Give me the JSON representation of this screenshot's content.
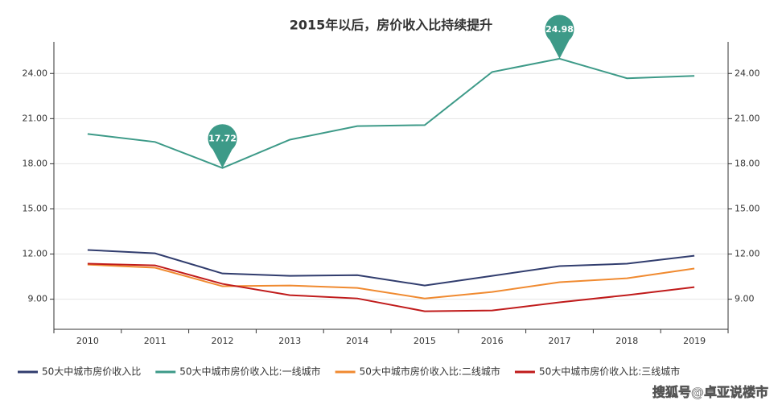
{
  "chart_data": {
    "type": "line",
    "title": "2015年以后，房价收入比持续提升",
    "categories": [
      "2010",
      "2011",
      "2012",
      "2013",
      "2014",
      "2015",
      "2016",
      "2017",
      "2018",
      "2019"
    ],
    "series": [
      {
        "name": "50大中城市房价收入比",
        "color": "#313d6e",
        "values": [
          12.27,
          12.05,
          10.71,
          10.55,
          10.6,
          9.91,
          10.55,
          11.2,
          11.36,
          11.89
        ]
      },
      {
        "name": "50大中城市房价收入比:一线城市",
        "color": "#3d9a88",
        "values": [
          19.98,
          19.45,
          17.72,
          19.6,
          20.5,
          20.57,
          24.1,
          24.98,
          23.68,
          23.84
        ],
        "mark_points": [
          "max",
          "min"
        ]
      },
      {
        "name": "50大中城市房价收入比:二线城市",
        "color": "#f08a30",
        "values": [
          11.3,
          11.09,
          9.86,
          9.91,
          9.75,
          9.05,
          9.48,
          10.13,
          10.39,
          11.04
        ]
      },
      {
        "name": "50大中城市房价收入比:三线城市",
        "color": "#c01b1b",
        "values": [
          11.36,
          11.25,
          10.02,
          9.27,
          9.05,
          8.2,
          8.25,
          8.79,
          9.27,
          9.8
        ]
      }
    ],
    "ylim": [
      7,
      26.1
    ],
    "yticks": [
      {
        "value": 9,
        "label": "9.00"
      },
      {
        "value": 12,
        "label": "12.00"
      },
      {
        "value": 15,
        "label": "15.00"
      },
      {
        "value": 18,
        "label": "18.00"
      },
      {
        "value": 21,
        "label": "21.00"
      },
      {
        "value": 24,
        "label": "24.00"
      }
    ],
    "y2lim": [
      7,
      26.1
    ],
    "y2ticks": [
      {
        "value": 9,
        "label": "9.00"
      },
      {
        "value": 12,
        "label": "12.00"
      },
      {
        "value": 15,
        "label": "15.00"
      },
      {
        "value": 18,
        "label": "18.00"
      },
      {
        "value": 21,
        "label": "21.00"
      },
      {
        "value": 24,
        "label": "24.00"
      }
    ],
    "grid": true,
    "legend": "bottom",
    "watermark": "搜狐号@卓亚说楼市"
  }
}
